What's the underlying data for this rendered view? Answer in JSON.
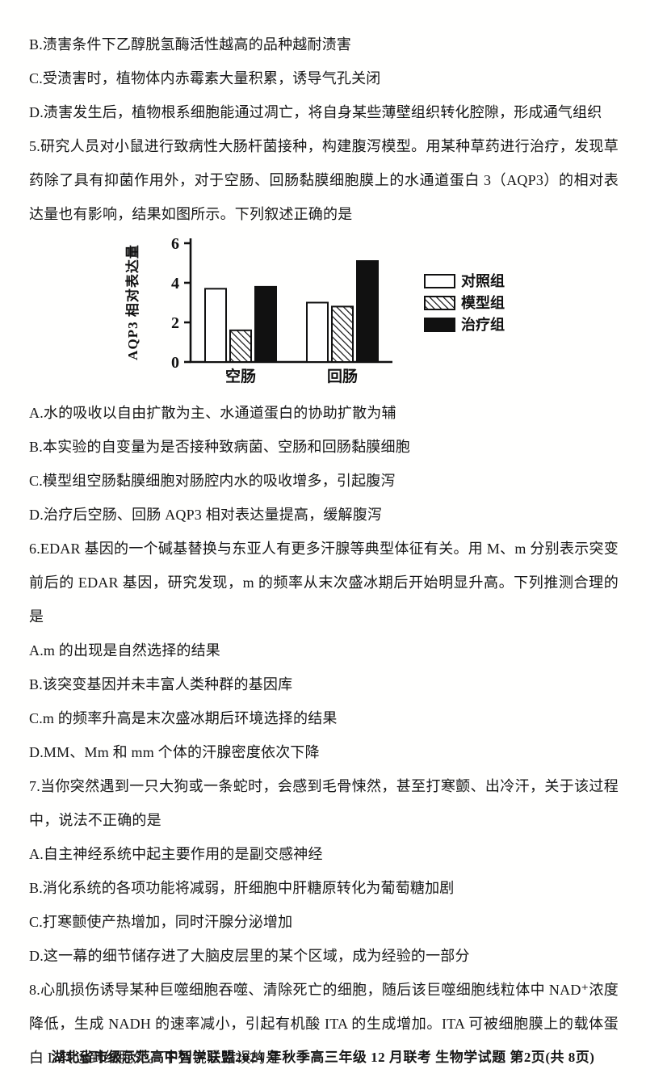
{
  "content": {
    "q4_options": [
      "B.渍害条件下乙醇脱氢酶活性越高的品种越耐渍害",
      "C.受渍害时，植物体内赤霉素大量积累，诱导气孔关闭",
      "D.渍害发生后，植物根系细胞能通过凋亡，将自身某些薄壁组织转化腔隙，形成通气组织"
    ],
    "q5": {
      "stem": "5.研究人员对小鼠进行致病性大肠杆菌接种，构建腹泻模型。用某种草药进行治疗，发现草药除了具有抑菌作用外，对于空肠、回肠黏膜细胞膜上的水通道蛋白 3（AQP3）的相对表达量也有影响，结果如图所示。下列叙述正确的是",
      "options": [
        "A.水的吸收以自由扩散为主、水通道蛋白的协助扩散为辅",
        "B.本实验的自变量为是否接种致病菌、空肠和回肠黏膜细胞",
        "C.模型组空肠黏膜细胞对肠腔内水的吸收增多，引起腹泻",
        "D.治疗后空肠、回肠 AQP3 相对表达量提高，缓解腹泻"
      ]
    },
    "q6": {
      "stem": "6.EDAR 基因的一个碱基替换与东亚人有更多汗腺等典型体征有关。用 M、m 分别表示突变前后的 EDAR 基因，研究发现，m 的频率从末次盛冰期后开始明显升高。下列推测合理的是",
      "options": [
        "A.m 的出现是自然选择的结果",
        "B.该突变基因并未丰富人类种群的基因库",
        "C.m 的频率升高是末次盛冰期后环境选择的结果",
        "D.MM、Mm 和 mm 个体的汗腺密度依次下降"
      ]
    },
    "q7": {
      "stem": "7.当你突然遇到一只大狗或一条蛇时，会感到毛骨悚然，甚至打寒颤、出冷汗，关于该过程中，说法不正确的是",
      "options": [
        "A.自主神经系统中起主要作用的是副交感神经",
        "B.消化系统的各项功能将减弱，肝细胞中肝糖原转化为葡萄糖加剧",
        "C.打寒颤使产热增加，同时汗腺分泌增加",
        "D.这一幕的细节储存进了大脑皮层里的某个区域，成为经验的一部分"
      ]
    },
    "q8": {
      "stem": "8.心肌损伤诱导某种巨噬细胞吞噬、清除死亡的细胞，随后该巨噬细胞线粒体中 NAD⁺浓度降低，生成 NADH 的速率减小，引起有机酸 ITA 的生成增加。ITA 可被细胞膜上的载体蛋白 L 转运到细胞外。下列说法错误的是"
    }
  },
  "chart_data": {
    "type": "bar",
    "title": "",
    "xlabel": "",
    "ylabel": "AQP3 相对表达量",
    "categories": [
      "空肠",
      "回肠"
    ],
    "series": [
      {
        "name": "对照组",
        "style": "white",
        "color": "#ffffff",
        "values": [
          3.7,
          3.0
        ]
      },
      {
        "name": "模型组",
        "style": "hatched",
        "color": "hatch",
        "values": [
          1.6,
          2.8
        ]
      },
      {
        "name": "治疗组",
        "style": "black",
        "color": "#111111",
        "values": [
          3.8,
          5.1
        ]
      }
    ],
    "ylim": [
      0,
      6
    ],
    "yticks": [
      0,
      2,
      4,
      6
    ],
    "legend_position": "right",
    "grid": false
  },
  "footer": {
    "text": "湖北省市级示范高中智学联盟2024 年秋季高三年级 12 月联考  生物学试题  第2页(共 8页)"
  }
}
